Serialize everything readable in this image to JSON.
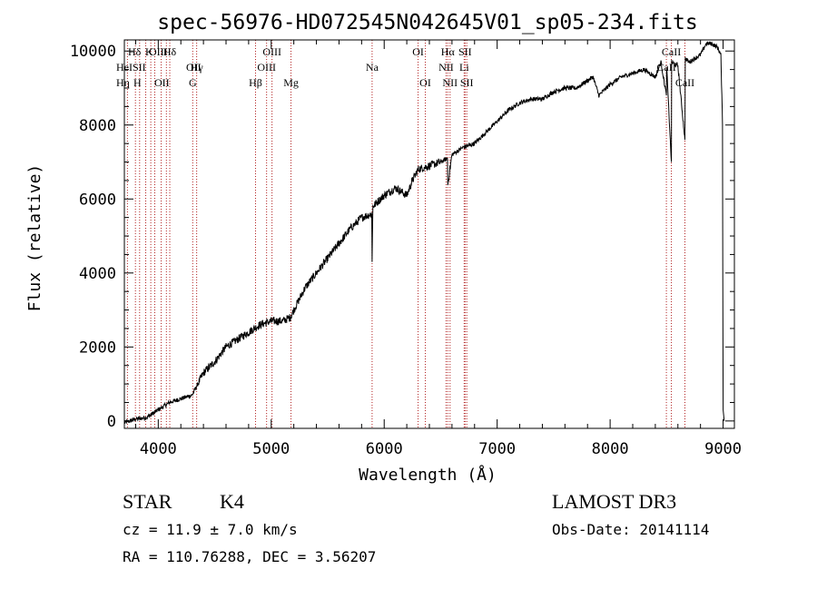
{
  "chart_data": {
    "type": "line",
    "title": "spec-56976-HD072545N042645V01_sp05-234.fits",
    "xlabel": "Wavelength (Å)",
    "ylabel": "Flux (relative)",
    "xlim": [
      3700,
      9100
    ],
    "ylim": [
      -200,
      10300
    ],
    "xticks": [
      4000,
      5000,
      6000,
      7000,
      8000,
      9000
    ],
    "yticks": [
      0,
      2000,
      4000,
      6000,
      8000,
      10000
    ],
    "grid": false,
    "series": [
      {
        "name": "flux",
        "x": [
          3700,
          3800,
          3900,
          3950,
          4000,
          4050,
          4100,
          4200,
          4300,
          4350,
          4400,
          4500,
          4600,
          4700,
          4800,
          4900,
          5000,
          5100,
          5170,
          5200,
          5300,
          5400,
          5500,
          5600,
          5700,
          5800,
          5890,
          5893,
          5900,
          6000,
          6100,
          6200,
          6250,
          6300,
          6400,
          6500,
          6560,
          6563,
          6600,
          6700,
          6800,
          6900,
          7000,
          7100,
          7200,
          7300,
          7400,
          7500,
          7600,
          7700,
          7800,
          7850,
          7900,
          8000,
          8100,
          8200,
          8300,
          8400,
          8450,
          8498,
          8500,
          8542,
          8545,
          8600,
          8662,
          8665,
          8700,
          8800,
          8850,
          8900,
          8950,
          8980,
          8995,
          9000,
          9010
        ],
        "values": [
          -50,
          50,
          100,
          200,
          300,
          400,
          500,
          600,
          700,
          1000,
          1300,
          1600,
          2000,
          2200,
          2400,
          2600,
          2700,
          2700,
          2800,
          3000,
          3600,
          4000,
          4400,
          4800,
          5200,
          5500,
          5600,
          4300,
          5800,
          6100,
          6300,
          6100,
          6500,
          6800,
          6900,
          7000,
          7100,
          6400,
          7200,
          7400,
          7500,
          7800,
          8100,
          8400,
          8600,
          8700,
          8700,
          8900,
          9000,
          9000,
          9200,
          9300,
          8800,
          9100,
          9300,
          9400,
          9500,
          9300,
          9700,
          8800,
          9600,
          7000,
          9700,
          9600,
          7600,
          9800,
          9700,
          9900,
          10200,
          10200,
          10100,
          9900,
          8000,
          300,
          0
        ]
      }
    ],
    "spectral_lines": [
      {
        "label": "Hδ",
        "x": 4102,
        "row": 0
      },
      {
        "label": "Hγ",
        "x": 4340,
        "row": 1
      },
      {
        "label": "G",
        "x": 4305,
        "row": 2
      },
      {
        "label": "Hβ",
        "x": 4861,
        "row": 2
      },
      {
        "label": "OIII",
        "x": 5007,
        "row": 0
      },
      {
        "label": "OIII",
        "x": 4959,
        "row": 1
      },
      {
        "label": "Mg",
        "x": 5175,
        "row": 2
      },
      {
        "label": "Na",
        "x": 5893,
        "row": 1
      },
      {
        "label": "OI",
        "x": 6300,
        "row": 0
      },
      {
        "label": "OI",
        "x": 6364,
        "row": 2
      },
      {
        "label": "Hα",
        "x": 6563,
        "row": 0
      },
      {
        "label": "NII",
        "x": 6548,
        "row": 1
      },
      {
        "label": "NII",
        "x": 6583,
        "row": 2
      },
      {
        "label": "SII",
        "x": 6716,
        "row": 0
      },
      {
        "label": "SII",
        "x": 6731,
        "row": 2
      },
      {
        "label": "Li",
        "x": 6708,
        "row": 1
      },
      {
        "label": "CaII",
        "x": 8498,
        "row": 1
      },
      {
        "label": "CaII",
        "x": 8542,
        "row": 0
      },
      {
        "label": "CaII",
        "x": 8662,
        "row": 2
      }
    ],
    "left_edge_labels": [
      {
        "label": "Hδ",
        "row": 0
      },
      {
        "label": "K",
        "row": 0
      },
      {
        "label": "OII",
        "row": 1
      },
      {
        "label": "HeI",
        "row": 1
      },
      {
        "label": "SII",
        "row": 1
      },
      {
        "label": "OII",
        "row": 2
      },
      {
        "label": "Hη",
        "row": 2
      },
      {
        "label": "H",
        "row": 2
      },
      {
        "label": "OIII",
        "row": 0
      }
    ],
    "extra_line_markers": [
      3727,
      3798,
      3835,
      3889,
      3934,
      3969,
      4026,
      4072,
      4102
    ]
  },
  "info": {
    "class_label": "STAR",
    "subclass": "K4",
    "survey": "LAMOST DR3",
    "cz": "cz = 11.9 ± 7.0 km/s",
    "obs_date": "Obs-Date: 20141114",
    "radec": "RA = 110.76288, DEC =    3.56207"
  },
  "colors": {
    "line_marker": "#b22222",
    "spectrum": "#000000",
    "axes": "#000000"
  }
}
